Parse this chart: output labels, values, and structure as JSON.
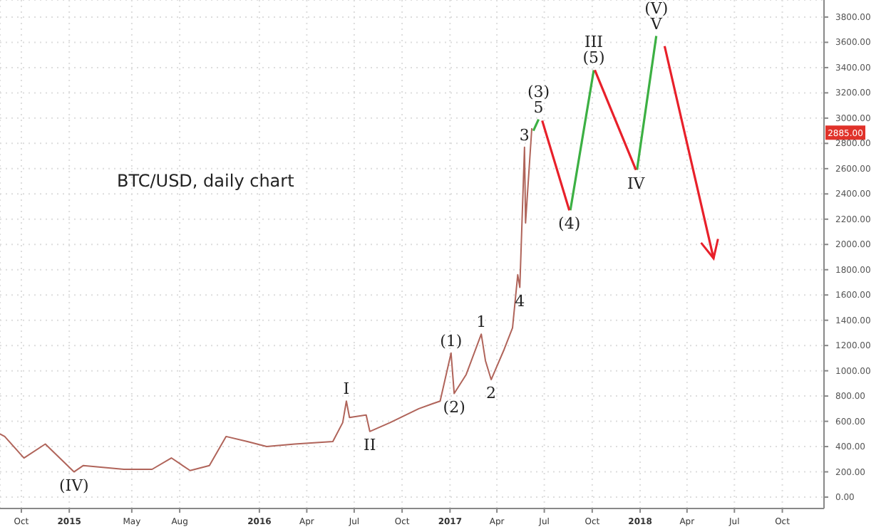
{
  "chart_data": {
    "type": "line",
    "title": "BTC/USD, daily chart",
    "xlim": [
      "2014-08-21",
      "2018-12-20"
    ],
    "ylim": [
      -90,
      3935
    ],
    "xticks": [
      {
        "value": "2014-10-01",
        "label": "Oct"
      },
      {
        "value": "2015-01-01",
        "label": "2015"
      },
      {
        "value": "2015-05-01",
        "label": "May"
      },
      {
        "value": "2015-08-01",
        "label": "Aug"
      },
      {
        "value": "2016-01-01",
        "label": "2016"
      },
      {
        "value": "2016-04-01",
        "label": "Apr"
      },
      {
        "value": "2016-07-01",
        "label": "Jul"
      },
      {
        "value": "2016-10-01",
        "label": "Oct"
      },
      {
        "value": "2017-01-01",
        "label": "2017"
      },
      {
        "value": "2017-04-01",
        "label": "Apr"
      },
      {
        "value": "2017-07-01",
        "label": "Jul"
      },
      {
        "value": "2017-10-01",
        "label": "Oct"
      },
      {
        "value": "2018-01-01",
        "label": "2018"
      },
      {
        "value": "2018-04-01",
        "label": "Apr"
      },
      {
        "value": "2018-07-01",
        "label": "Jul"
      },
      {
        "value": "2018-10-01",
        "label": "Oct"
      }
    ],
    "yticks": [
      {
        "value": 0,
        "label": "0.00"
      },
      {
        "value": 200,
        "label": "200.00"
      },
      {
        "value": 400,
        "label": "400.00"
      },
      {
        "value": 600,
        "label": "600.00"
      },
      {
        "value": 800,
        "label": "800.00"
      },
      {
        "value": 1000,
        "label": "1000.00"
      },
      {
        "value": 1200,
        "label": "1200.00"
      },
      {
        "value": 1400,
        "label": "1400.00"
      },
      {
        "value": 1600,
        "label": "1600.00"
      },
      {
        "value": 1800,
        "label": "1800.00"
      },
      {
        "value": 2000,
        "label": "2000.00"
      },
      {
        "value": 2200,
        "label": "2200.00"
      },
      {
        "value": 2400,
        "label": "2400.00"
      },
      {
        "value": 2600,
        "label": "2600.00"
      },
      {
        "value": 2800,
        "label": "2800.00"
      },
      {
        "value": 3000,
        "label": "3000.00"
      },
      {
        "value": 3200,
        "label": "3200.00"
      },
      {
        "value": 3400,
        "label": "3400.00"
      },
      {
        "value": 3600,
        "label": "3600.00"
      },
      {
        "value": 3800,
        "label": "3800.00"
      }
    ],
    "grid": true,
    "series": [
      {
        "color": "#b0645a",
        "x": [
          "2014-08-21",
          "2014-08-30",
          "2014-10-06",
          "2014-11-16",
          "2015-01-10",
          "2015-01-28",
          "2015-04-16",
          "2015-06-09",
          "2015-07-16",
          "2015-08-21",
          "2015-09-27",
          "2015-10-29",
          "2015-12-09",
          "2016-01-15",
          "2016-03-09",
          "2016-05-21",
          "2016-06-09",
          "2016-06-16",
          "2016-06-22",
          "2016-07-24",
          "2016-07-31",
          "2016-09-08",
          "2016-11-02",
          "2016-11-29",
          "2016-12-13",
          "2017-01-03",
          "2017-01-09",
          "2017-02-01",
          "2017-03-02",
          "2017-03-10",
          "2017-03-21",
          "2017-04-15",
          "2017-05-01",
          "2017-05-11",
          "2017-05-15",
          "2017-05-24",
          "2017-05-26",
          "2017-06-07"
        ],
        "values": [
          500,
          480,
          310,
          420,
          200,
          250,
          220,
          220,
          310,
          210,
          250,
          480,
          440,
          400,
          420,
          440,
          590,
          760,
          630,
          650,
          520,
          590,
          700,
          740,
          760,
          1140,
          820,
          970,
          1290,
          1080,
          930,
          1170,
          1340,
          1760,
          1660,
          2770,
          2170,
          2920
        ]
      },
      {
        "color": "#3cb043",
        "line_style": "solid",
        "x": [
          "2017-06-10",
          "2017-06-20",
          "2017-07-01",
          "2017-08-20",
          "2017-10-04",
          "2017-11-01",
          "2017-12-26",
          "2018-02-01"
        ],
        "values": [
          2900,
          2990,
          null,
          2270,
          3380,
          null,
          2590,
          3650
        ]
      },
      {
        "color": "#e8202a",
        "line_style": "solid",
        "x": [
          "2017-06-27",
          "2017-08-18",
          "2017-09-01",
          "2017-10-06",
          "2017-12-24",
          "2018-01-15",
          "2018-02-17",
          "2018-05-22"
        ],
        "values": [
          2980,
          2270,
          null,
          3380,
          2590,
          null,
          3570,
          1890
        ]
      }
    ],
    "annotations": [
      {
        "text": "(IV)",
        "x": "2015-01-10",
        "y": 200
      },
      {
        "text": "I",
        "x": "2016-06-16",
        "y": 760
      },
      {
        "text": "II",
        "x": "2016-07-31",
        "y": 520
      },
      {
        "text": "(1)",
        "x": "2017-01-03",
        "y": 1140
      },
      {
        "text": "(2)",
        "x": "2017-01-09",
        "y": 820
      },
      {
        "text": "1",
        "x": "2017-03-02",
        "y": 1290
      },
      {
        "text": "2",
        "x": "2017-03-21",
        "y": 930
      },
      {
        "text": "4",
        "x": "2017-05-15",
        "y": 1660
      },
      {
        "text": "3",
        "x": "2017-05-24",
        "y": 2770
      },
      {
        "text": "5",
        "x": "2017-06-20",
        "y": 2990
      },
      {
        "text": "(3)",
        "x": "2017-06-20",
        "y": 2990
      },
      {
        "text": "(4)",
        "x": "2017-08-18",
        "y": 2270
      },
      {
        "text": "(5)",
        "x": "2017-10-04",
        "y": 3380
      },
      {
        "text": "III",
        "x": "2017-10-04",
        "y": 3380
      },
      {
        "text": "IV",
        "x": "2017-12-24",
        "y": 2590
      },
      {
        "text": "V",
        "x": "2018-02-01",
        "y": 3650
      },
      {
        "text": "(V)",
        "x": "2018-02-01",
        "y": 3650
      },
      {
        "text": "2885.00",
        "y": 2885
      }
    ]
  }
}
